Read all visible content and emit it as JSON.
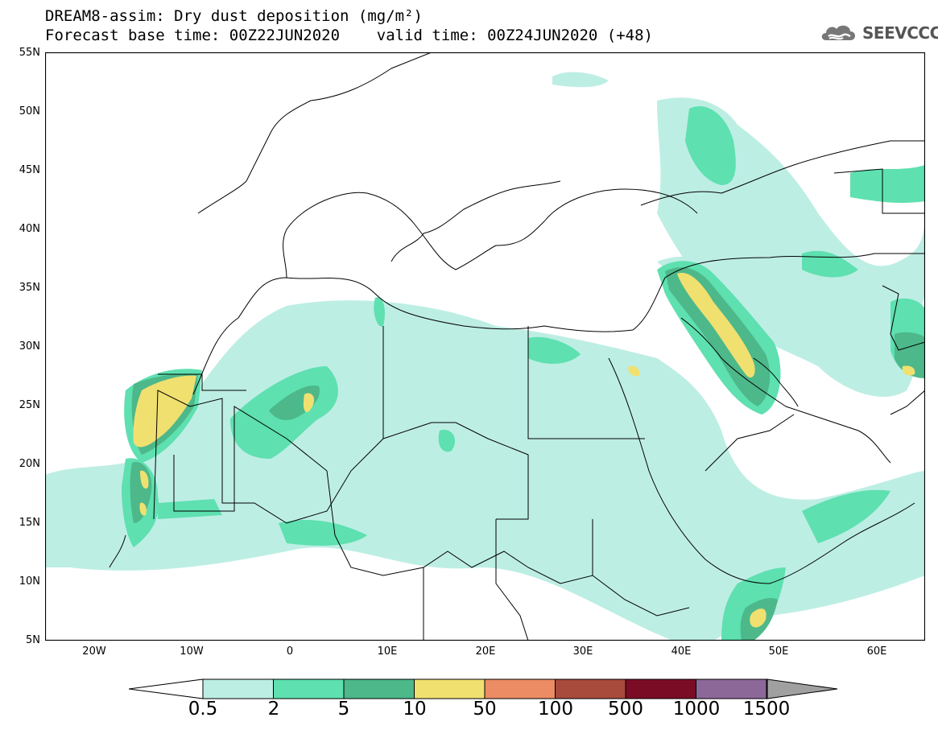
{
  "title": {
    "line1": "DREAM8-assim: Dry dust deposition (mg/m²)",
    "line2": "Forecast base time: 00Z22JUN2020    valid time: 00Z24JUN2020 (+48)"
  },
  "logo": {
    "text": "SEEVCCC",
    "icon": "cloud-logo-icon"
  },
  "map": {
    "lon_range": [
      -25,
      65
    ],
    "lat_range": [
      5,
      55
    ],
    "lat_labels": [
      "55N",
      "50N",
      "45N",
      "40N",
      "35N",
      "30N",
      "25N",
      "20N",
      "15N",
      "10N",
      "5N"
    ],
    "lon_labels": [
      "20W",
      "10W",
      "0",
      "10E",
      "20E",
      "30E",
      "40E",
      "50E",
      "60E"
    ]
  },
  "legend": {
    "labels": [
      "0.5",
      "2",
      "5",
      "10",
      "50",
      "100",
      "500",
      "1000",
      "1500"
    ],
    "colors": [
      "#ffffff",
      "#bdeee4",
      "#5ee0b0",
      "#4db88a",
      "#f0e070",
      "#eb8c64",
      "#a84a3c",
      "#7a0d25",
      "#8c6898",
      "#a0a0a0"
    ]
  }
}
